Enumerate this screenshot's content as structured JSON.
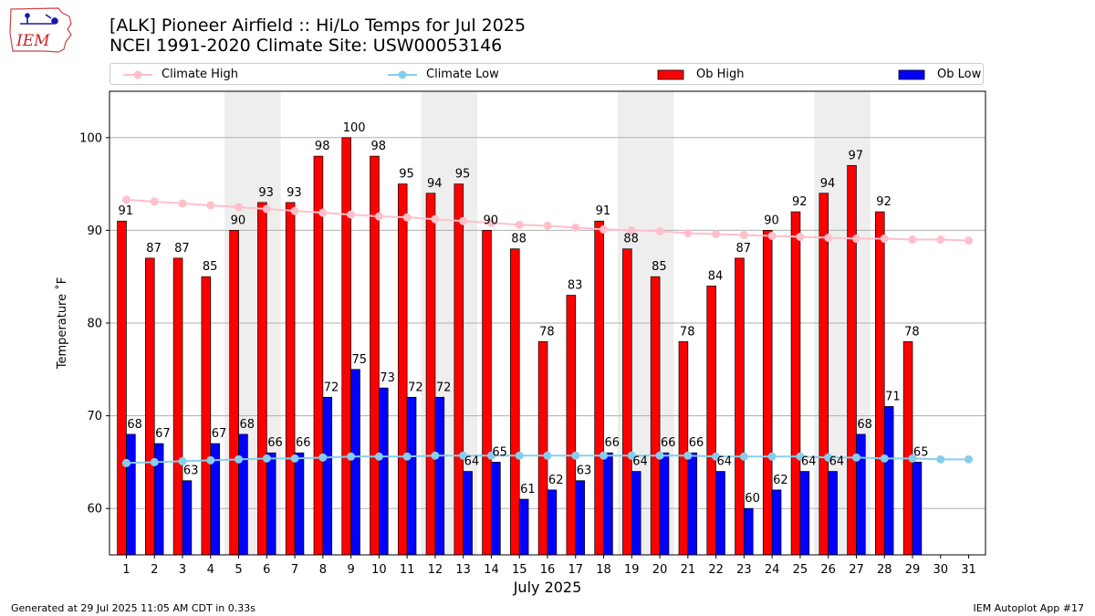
{
  "header": {
    "logo_text": "IEM",
    "title_line1": "[ALK] Pioneer Airfield :: Hi/Lo Temps for Jul 2025",
    "title_line2": "NCEI 1991-2020 Climate Site: USW00053146"
  },
  "footer": {
    "left": "Generated at 29 Jul 2025 11:05 AM CDT in 0.33s",
    "right": "IEM Autoplot App #17"
  },
  "chart_data": {
    "type": "bar",
    "xlabel": "July 2025",
    "ylabel": "Temperature ˚F",
    "ylim": [
      55,
      105
    ],
    "yticks": [
      60,
      70,
      80,
      90,
      100
    ],
    "grid": true,
    "legend_position": "top",
    "weekend_shading_days": [
      5,
      6,
      12,
      13,
      19,
      20,
      26,
      27
    ],
    "categories": [
      1,
      2,
      3,
      4,
      5,
      6,
      7,
      8,
      9,
      10,
      11,
      12,
      13,
      14,
      15,
      16,
      17,
      18,
      19,
      20,
      21,
      22,
      23,
      24,
      25,
      26,
      27,
      28,
      29,
      30,
      31
    ],
    "series": [
      {
        "name": "Ob High",
        "kind": "bar",
        "color": "#ff0000",
        "values": [
          91,
          87,
          87,
          85,
          90,
          93,
          93,
          98,
          100,
          98,
          95,
          94,
          95,
          90,
          88,
          78,
          83,
          91,
          88,
          85,
          78,
          84,
          87,
          90,
          92,
          94,
          97,
          92,
          78,
          null,
          null
        ]
      },
      {
        "name": "Ob Low",
        "kind": "bar",
        "color": "#0000ff",
        "values": [
          68,
          67,
          63,
          67,
          68,
          66,
          66,
          72,
          75,
          73,
          72,
          72,
          64,
          65,
          61,
          62,
          63,
          66,
          64,
          66,
          66,
          64,
          60,
          62,
          64,
          64,
          68,
          71,
          65,
          null,
          null
        ]
      },
      {
        "name": "Climate High",
        "kind": "line",
        "color": "#ffc0cb",
        "values": [
          93.3,
          93.1,
          92.9,
          92.7,
          92.5,
          92.3,
          92.1,
          91.9,
          91.7,
          91.5,
          91.4,
          91.2,
          91.0,
          90.8,
          90.6,
          90.5,
          90.3,
          90.1,
          90.0,
          89.9,
          89.7,
          89.6,
          89.5,
          89.4,
          89.3,
          89.2,
          89.1,
          89.1,
          89.0,
          89.0,
          88.9
        ]
      },
      {
        "name": "Climate Low",
        "kind": "line",
        "color": "#87ceeb",
        "values": [
          64.9,
          65.0,
          65.1,
          65.2,
          65.3,
          65.4,
          65.4,
          65.5,
          65.6,
          65.6,
          65.6,
          65.7,
          65.7,
          65.7,
          65.7,
          65.7,
          65.7,
          65.7,
          65.7,
          65.7,
          65.7,
          65.6,
          65.6,
          65.6,
          65.6,
          65.5,
          65.5,
          65.4,
          65.4,
          65.3,
          65.3
        ]
      }
    ]
  }
}
